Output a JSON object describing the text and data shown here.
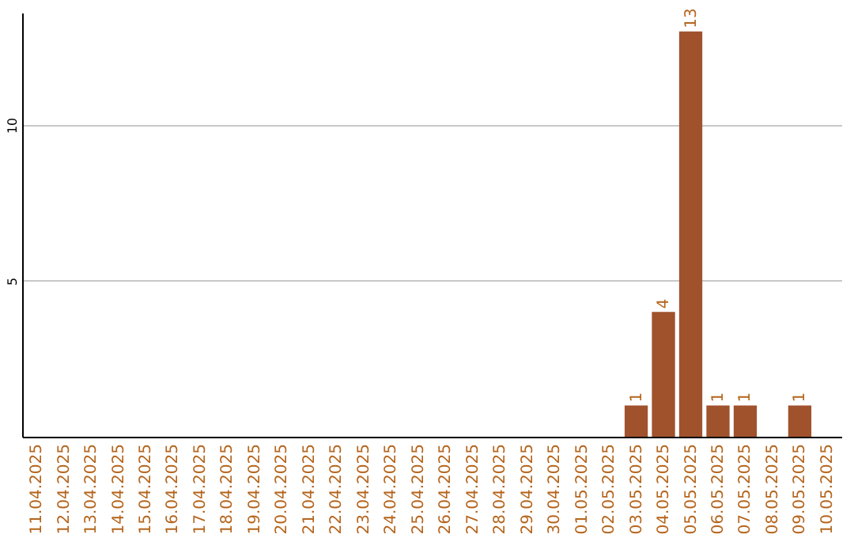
{
  "chart_data": {
    "type": "bar",
    "categories": [
      "11.04.2025",
      "12.04.2025",
      "13.04.2025",
      "14.04.2025",
      "15.04.2025",
      "16.04.2025",
      "17.04.2025",
      "18.04.2025",
      "19.04.2025",
      "20.04.2025",
      "21.04.2025",
      "22.04.2025",
      "23.04.2025",
      "24.04.2025",
      "25.04.2025",
      "26.04.2025",
      "27.04.2025",
      "28.04.2025",
      "29.04.2025",
      "30.04.2025",
      "01.05.2025",
      "02.05.2025",
      "03.05.2025",
      "04.05.2025",
      "05.05.2025",
      "06.05.2025",
      "07.05.2025",
      "08.05.2025",
      "09.05.2025",
      "10.05.2025"
    ],
    "values": [
      0,
      0,
      0,
      0,
      0,
      0,
      0,
      0,
      0,
      0,
      0,
      0,
      0,
      0,
      0,
      0,
      0,
      0,
      0,
      0,
      0,
      0,
      1,
      4,
      13,
      1,
      1,
      0,
      1,
      0
    ],
    "value_labels": [
      null,
      null,
      null,
      null,
      null,
      null,
      null,
      null,
      null,
      null,
      null,
      null,
      null,
      null,
      null,
      null,
      null,
      null,
      null,
      null,
      null,
      null,
      "1",
      "4",
      "13",
      "1",
      "1",
      null,
      "1",
      null
    ],
    "color": "#a0522d",
    "ylim": [
      0,
      13.6
    ],
    "yticks": [
      5,
      10
    ],
    "grid": "y"
  }
}
